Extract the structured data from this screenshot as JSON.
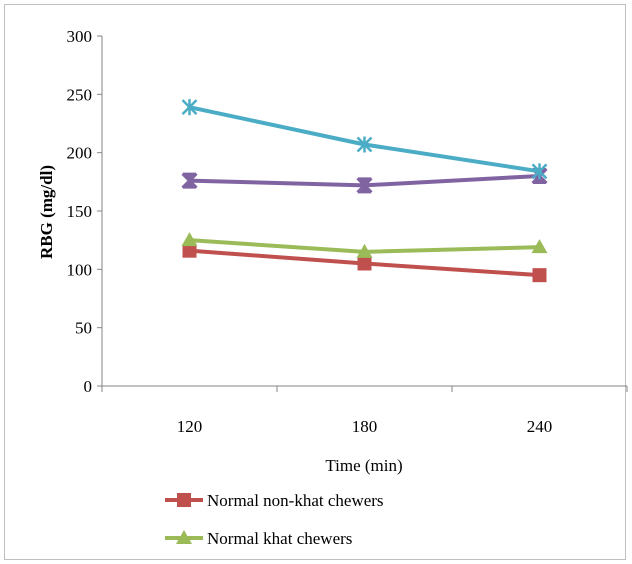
{
  "chart_data": {
    "type": "line",
    "title": "",
    "xlabel": "Time (min)",
    "ylabel": "RBG (mg/dl)",
    "categories": [
      "120",
      "180",
      "240"
    ],
    "ylim": [
      0,
      300
    ],
    "yticks": [
      "0",
      "50",
      "100",
      "150",
      "200",
      "250",
      "300"
    ],
    "grid": false,
    "legend_position": "bottom",
    "series": [
      {
        "name": "Normal non-khat chewers",
        "values": [
          116,
          105,
          95
        ],
        "color": "#c0504d",
        "marker": "square"
      },
      {
        "name": "Normal khat chewers",
        "values": [
          125,
          115,
          119
        ],
        "color": "#9bbb59",
        "marker": "triangle"
      },
      {
        "name": "",
        "values": [
          176,
          172,
          180
        ],
        "color": "#8064a2",
        "marker": "x"
      },
      {
        "name": "",
        "values": [
          239,
          207,
          184
        ],
        "color": "#4bacc6",
        "marker": "star"
      }
    ]
  }
}
